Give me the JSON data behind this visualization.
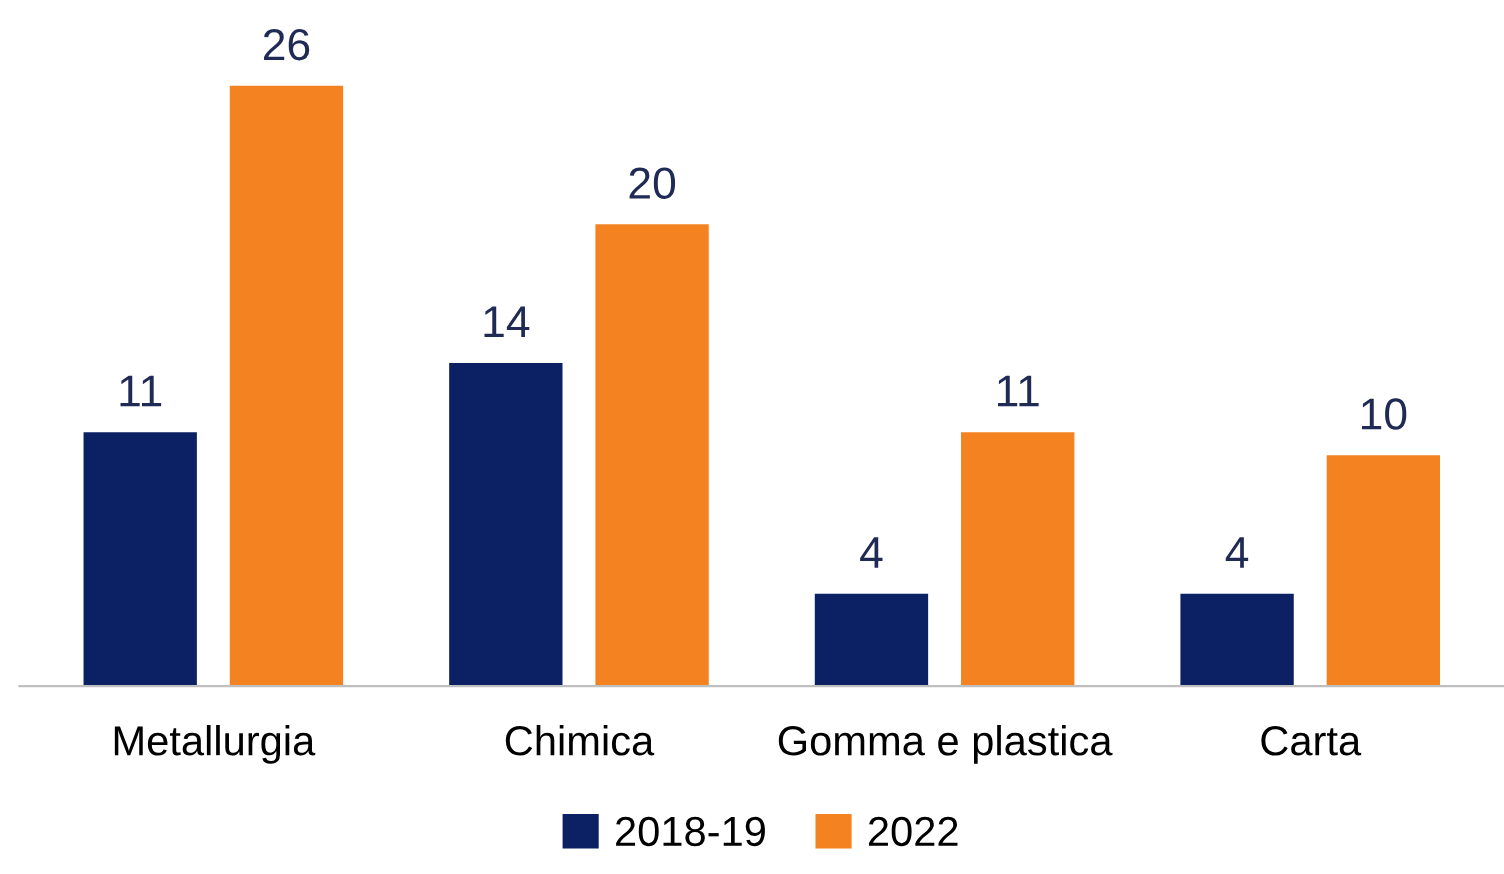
{
  "chart_data": {
    "type": "bar",
    "categories": [
      "Metallurgia",
      "Chimica",
      "Gomma e plastica",
      "Carta"
    ],
    "series": [
      {
        "name": "2018-19",
        "color": "#0c2163",
        "values": [
          11,
          14,
          4,
          4
        ]
      },
      {
        "name": "2022",
        "color": "#f58220",
        "values": [
          26,
          20,
          11,
          10
        ]
      }
    ],
    "data_labels": true,
    "legend": "bottom",
    "grid": false
  }
}
